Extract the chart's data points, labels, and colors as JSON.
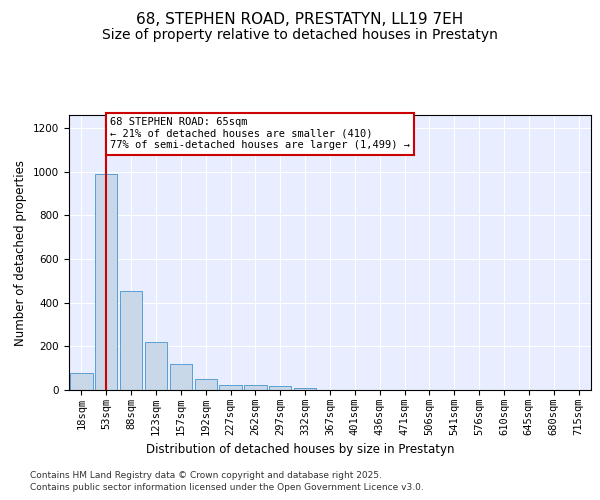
{
  "title1": "68, STEPHEN ROAD, PRESTATYN, LL19 7EH",
  "title2": "Size of property relative to detached houses in Prestatyn",
  "xlabel": "Distribution of detached houses by size in Prestatyn",
  "ylabel": "Number of detached properties",
  "categories": [
    "18sqm",
    "53sqm",
    "88sqm",
    "123sqm",
    "157sqm",
    "192sqm",
    "227sqm",
    "262sqm",
    "297sqm",
    "332sqm",
    "367sqm",
    "401sqm",
    "436sqm",
    "471sqm",
    "506sqm",
    "541sqm",
    "576sqm",
    "610sqm",
    "645sqm",
    "680sqm",
    "715sqm"
  ],
  "bar_heights": [
    80,
    990,
    455,
    220,
    120,
    50,
    25,
    22,
    18,
    10,
    0,
    0,
    0,
    0,
    0,
    0,
    0,
    0,
    0,
    0,
    0
  ],
  "bar_color": "#c8d8e8",
  "bar_edge_color": "#5a9fd4",
  "vline_x_idx": 1,
  "vline_color": "#cc0000",
  "annotation_text": "68 STEPHEN ROAD: 65sqm\n← 21% of detached houses are smaller (410)\n77% of semi-detached houses are larger (1,499) →",
  "annotation_box_color": "#ffffff",
  "annotation_box_edge": "#cc0000",
  "ylim": [
    0,
    1260
  ],
  "yticks": [
    0,
    200,
    400,
    600,
    800,
    1000,
    1200
  ],
  "background_color": "#e8eeff",
  "footer_line1": "Contains HM Land Registry data © Crown copyright and database right 2025.",
  "footer_line2": "Contains public sector information licensed under the Open Government Licence v3.0.",
  "title1_fontsize": 11,
  "title2_fontsize": 10,
  "axis_label_fontsize": 8.5,
  "tick_fontsize": 7.5,
  "footer_fontsize": 6.5
}
